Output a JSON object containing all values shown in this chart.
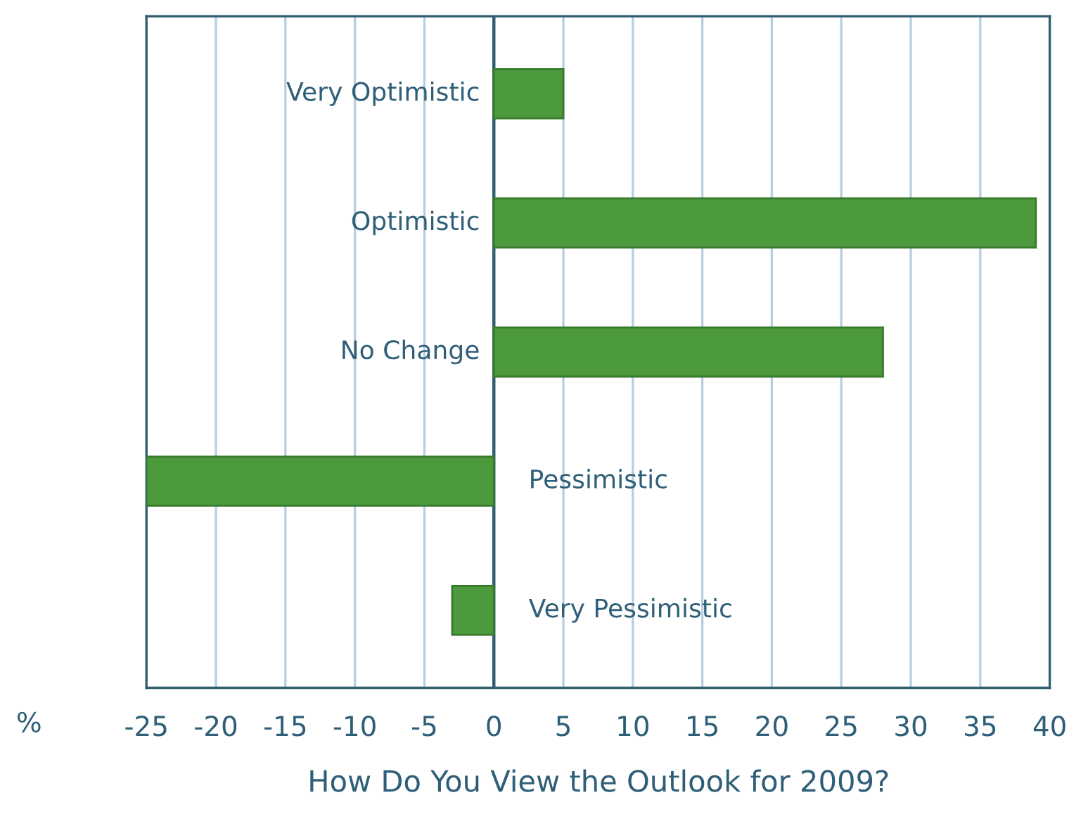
{
  "chart_data": {
    "type": "bar",
    "orientation": "horizontal",
    "title": "How Do You View the Outlook for 2009?",
    "xlabel": "%",
    "categories": [
      "Very Optimistic",
      "Optimistic",
      "No Change",
      "Pessimistic",
      "Very Pessimistic"
    ],
    "values": [
      5,
      39,
      28,
      -25,
      -3
    ],
    "color": "#4c9a3c",
    "xlim": [
      -25,
      40
    ],
    "xticks": [
      -25,
      -20,
      -15,
      -10,
      -5,
      0,
      5,
      10,
      15,
      20,
      25,
      30,
      35,
      40
    ],
    "grid": "x",
    "tick_labels": "x"
  }
}
